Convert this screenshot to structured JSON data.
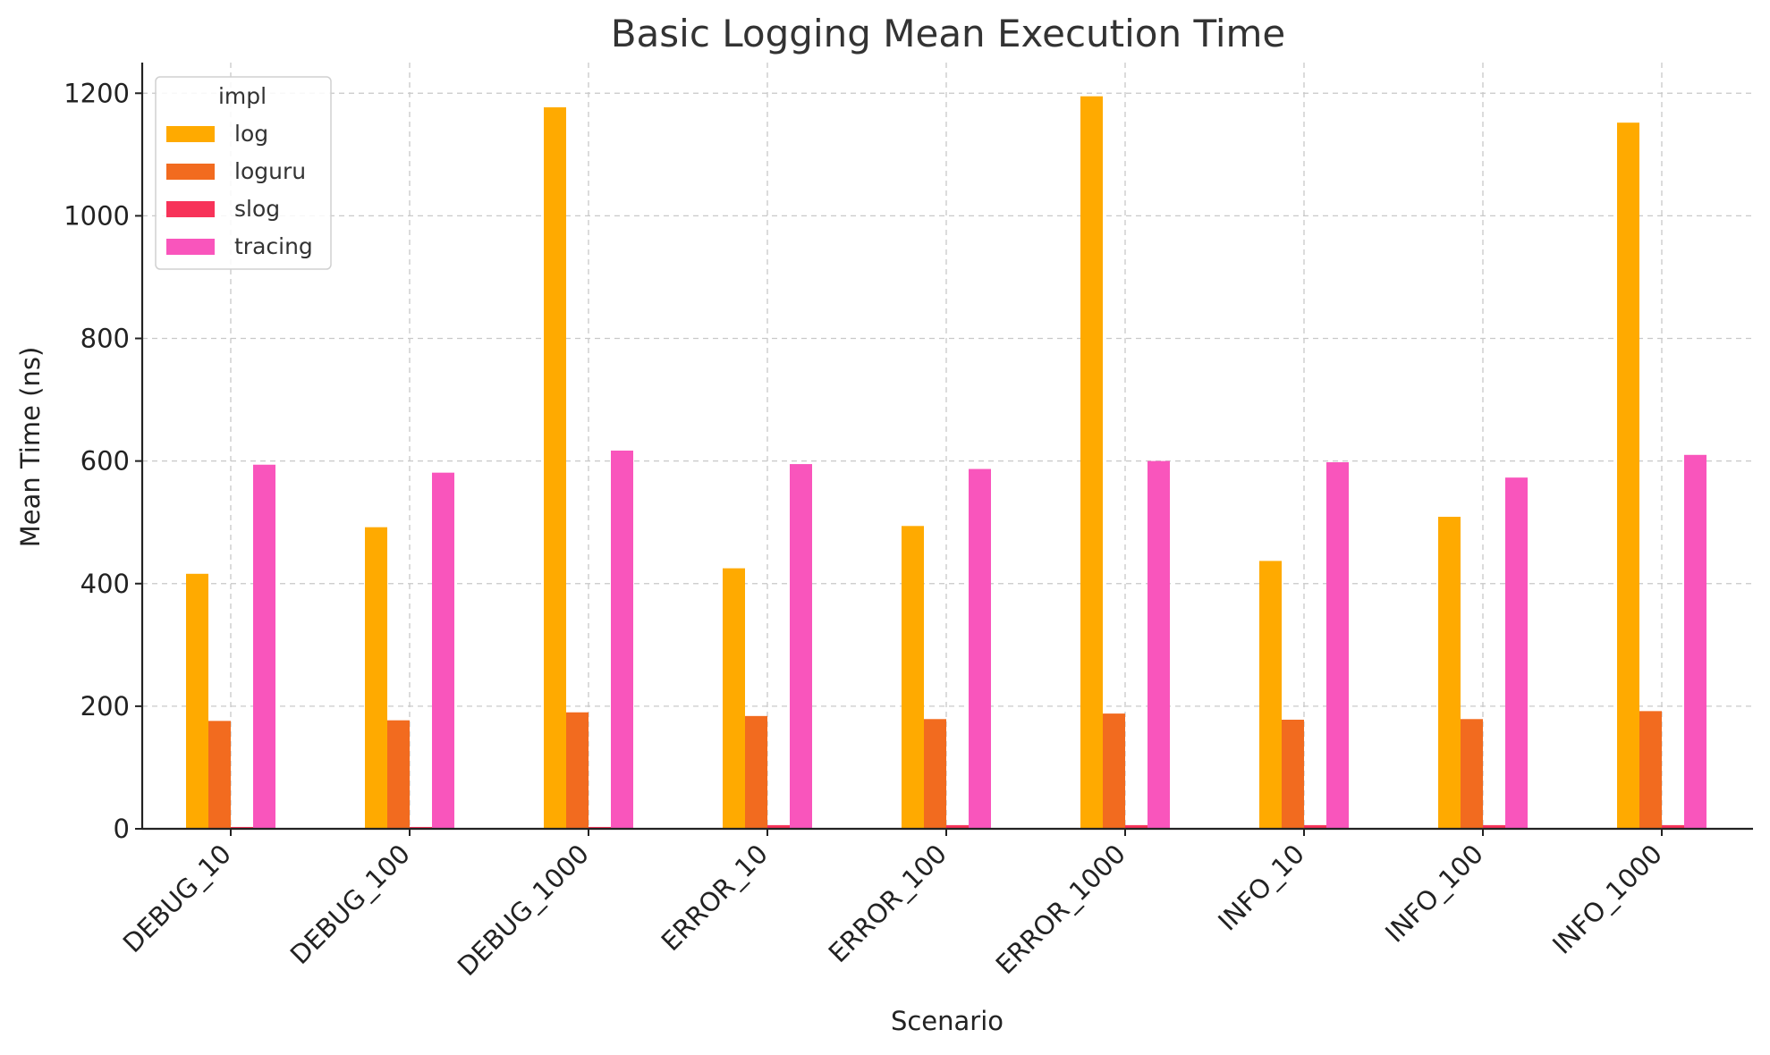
{
  "chart_data": {
    "type": "bar",
    "title": "Basic Logging Mean Execution Time",
    "xlabel": "Scenario",
    "ylabel": "Mean Time (ns)",
    "ylim": [
      0,
      1250
    ],
    "yticks": [
      0,
      200,
      400,
      600,
      800,
      1000,
      1200
    ],
    "grid": true,
    "legend": {
      "title": "impl",
      "placement": "top-left"
    },
    "categories": [
      "DEBUG_10",
      "DEBUG_100",
      "DEBUG_1000",
      "ERROR_10",
      "ERROR_100",
      "ERROR_1000",
      "INFO_10",
      "INFO_100",
      "INFO_1000"
    ],
    "series": [
      {
        "name": "log",
        "color": "#FFAA00",
        "values": [
          416,
          492,
          1177,
          425,
          494,
          1195,
          437,
          509,
          1152
        ]
      },
      {
        "name": "loguru",
        "color": "#F26B1F",
        "values": [
          176,
          177,
          190,
          184,
          179,
          188,
          178,
          179,
          192
        ]
      },
      {
        "name": "slog",
        "color": "#F73359",
        "values": [
          3,
          3,
          3,
          6,
          6,
          6,
          6,
          6,
          6
        ]
      },
      {
        "name": "tracing",
        "color": "#F955BC",
        "values": [
          594,
          581,
          617,
          595,
          587,
          600,
          598,
          573,
          610
        ]
      }
    ]
  }
}
